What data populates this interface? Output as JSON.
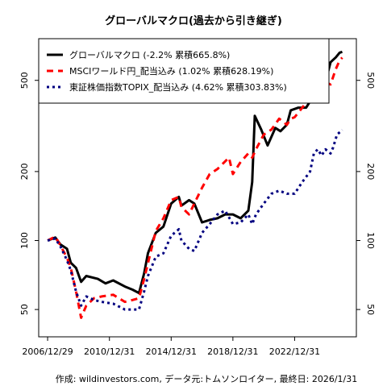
{
  "chart_data": {
    "type": "line",
    "title": "グローバルマクロ(過去から引き継ぎ)",
    "caption": "作成: wildinvestors.com, データ元:トムソンロイター, 最終日: 2026/1/31",
    "y_scale": "log",
    "ylim": [
      38,
      760
    ],
    "y_ticks": [
      50,
      100,
      200,
      500
    ],
    "x_ticks": [
      "2006/12/29",
      "2010/12/31",
      "2014/12/31",
      "2018/12/31",
      "2022/12/31"
    ],
    "xlim": [
      "2006-06-01",
      "2026-12-31"
    ],
    "legend": {
      "position": "top-left",
      "entries": [
        "グローバルマクロ (-2.2% 累積665.8%)",
        "MSCIワールド円_配当込み (1.02% 累積628.19%)",
        "東証株価指数TOPIX_配当込み (4.62% 累積303.83%)"
      ]
    },
    "series": [
      {
        "color": "#000000",
        "dash": "solid",
        "x": [
          "2006-12-29",
          "2007-06-30",
          "2007-10-31",
          "2008-03-31",
          "2008-06-30",
          "2008-10-31",
          "2009-02-28",
          "2009-06-30",
          "2010-03-31",
          "2010-09-30",
          "2011-03-31",
          "2011-12-31",
          "2012-06-30",
          "2012-11-30",
          "2013-03-31",
          "2013-06-30",
          "2013-12-31",
          "2014-06-30",
          "2014-12-31",
          "2015-06-30",
          "2015-08-31",
          "2016-02-28",
          "2016-06-30",
          "2016-12-31",
          "2017-06-30",
          "2017-12-31",
          "2018-06-30",
          "2018-12-31",
          "2019-06-30",
          "2019-12-31",
          "2020-03-31",
          "2020-05-31",
          "2020-10-31",
          "2021-03-31",
          "2021-09-30",
          "2022-01-31",
          "2022-06-30",
          "2022-09-30",
          "2023-03-31",
          "2023-09-30",
          "2024-03-31",
          "2024-06-30",
          "2024-09-30",
          "2025-01-31",
          "2025-04-30",
          "2025-08-31",
          "2025-11-30",
          "2026-01-31"
        ],
        "values": [
          100,
          103,
          96,
          92,
          80,
          76,
          66,
          70,
          68,
          65,
          67,
          63,
          61,
          59,
          72,
          88,
          108,
          115,
          145,
          155,
          142,
          150,
          145,
          120,
          123,
          125,
          130,
          130,
          125,
          135,
          180,
          350,
          305,
          260,
          310,
          300,
          320,
          370,
          380,
          380,
          430,
          470,
          420,
          520,
          600,
          630,
          660,
          665.8
        ]
      },
      {
        "color": "#ff0000",
        "dash": "8,6",
        "x": [
          "2006-12-29",
          "2007-06-30",
          "2007-10-31",
          "2008-03-31",
          "2008-06-30",
          "2008-10-31",
          "2009-02-28",
          "2009-06-30",
          "2009-12-31",
          "2010-06-30",
          "2011-03-31",
          "2011-12-31",
          "2012-06-30",
          "2012-11-30",
          "2013-03-31",
          "2013-12-31",
          "2014-06-30",
          "2014-12-31",
          "2015-06-30",
          "2015-08-31",
          "2016-02-28",
          "2016-06-30",
          "2016-12-31",
          "2017-06-30",
          "2017-12-31",
          "2018-09-30",
          "2018-12-31",
          "2019-06-30",
          "2019-12-31",
          "2020-03-31",
          "2020-06-30",
          "2020-12-31",
          "2021-06-30",
          "2021-12-31",
          "2022-06-30",
          "2022-09-30",
          "2022-12-31",
          "2023-06-30",
          "2023-12-31",
          "2024-06-30",
          "2024-09-30",
          "2024-12-31",
          "2025-04-30",
          "2025-08-31",
          "2025-11-30",
          "2026-01-31"
        ],
        "values": [
          100,
          104,
          95,
          84,
          76,
          60,
          46,
          52,
          56,
          57,
          58,
          54,
          55,
          56,
          68,
          110,
          125,
          150,
          155,
          140,
          130,
          145,
          170,
          195,
          205,
          230,
          195,
          220,
          240,
          230,
          250,
          290,
          305,
          340,
          320,
          340,
          345,
          380,
          420,
          460,
          440,
          490,
          480,
          560,
          610,
          628.19
        ]
      },
      {
        "color": "#000080",
        "dash": "3,4",
        "x": [
          "2006-12-29",
          "2007-06-30",
          "2007-10-31",
          "2008-03-31",
          "2008-06-30",
          "2008-10-31",
          "2009-02-28",
          "2009-06-30",
          "2009-12-31",
          "2010-06-30",
          "2011-03-31",
          "2011-12-31",
          "2012-06-30",
          "2012-11-30",
          "2013-03-31",
          "2013-06-30",
          "2013-12-31",
          "2014-06-30",
          "2014-12-31",
          "2015-06-30",
          "2015-08-31",
          "2016-02-28",
          "2016-06-30",
          "2016-12-31",
          "2017-06-30",
          "2017-12-31",
          "2018-06-30",
          "2018-12-31",
          "2019-06-30",
          "2019-12-31",
          "2020-03-31",
          "2020-06-30",
          "2020-12-31",
          "2021-06-30",
          "2021-12-31",
          "2022-06-30",
          "2022-12-31",
          "2023-06-30",
          "2023-12-31",
          "2024-03-31",
          "2024-06-30",
          "2024-09-30",
          "2024-12-31",
          "2025-04-30",
          "2025-06-30",
          "2025-09-30",
          "2025-12-31",
          "2026-01-31"
        ],
        "values": [
          100,
          102,
          94,
          82,
          74,
          60,
          52,
          57,
          55,
          54,
          53,
          50,
          50,
          50,
          60,
          70,
          85,
          88,
          105,
          112,
          100,
          92,
          90,
          108,
          118,
          130,
          135,
          118,
          120,
          130,
          118,
          130,
          145,
          160,
          165,
          160,
          160,
          180,
          200,
          240,
          250,
          235,
          250,
          240,
          255,
          290,
          300,
          303.83
        ]
      }
    ]
  }
}
